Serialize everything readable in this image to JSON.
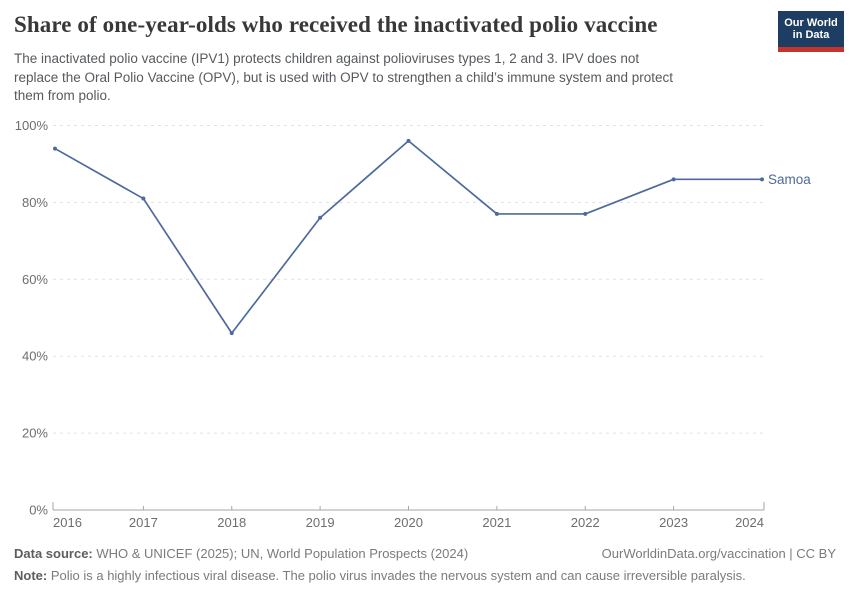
{
  "header": {
    "title": "Share of one-year-olds who received the inactivated polio vaccine",
    "subtitle_lines": [
      "The inactivated polio vaccine (IPV1) protects children against polioviruses types 1, 2 and 3. IPV does not",
      "replace the Oral Polio Vaccine (OPV), but is used with OPV to strengthen a child’s immune system and protect",
      "them from polio."
    ]
  },
  "logo": {
    "line1": "Our World",
    "line2": "in Data"
  },
  "chart_data": {
    "type": "line",
    "title": "Share of one-year-olds who received the inactivated polio vaccine",
    "x": [
      2016,
      2017,
      2018,
      2019,
      2020,
      2021,
      2022,
      2023,
      2024
    ],
    "series": [
      {
        "name": "Samoa",
        "values": [
          94,
          81,
          46,
          76,
          96,
          77,
          77,
          86,
          86
        ],
        "color": "#4c6a9c"
      }
    ],
    "unit": "%",
    "ylim": [
      0,
      100
    ],
    "yticks": [
      0,
      20,
      40,
      60,
      80,
      100
    ],
    "ytick_labels": [
      "0%",
      "20%",
      "40%",
      "60%",
      "80%",
      "100%"
    ],
    "xtick_labels": [
      "2016",
      "2017",
      "2018",
      "2019",
      "2020",
      "2021",
      "2022",
      "2023",
      "2024"
    ],
    "grid": "horizontal-dashed",
    "legend_position": "line-end-label"
  },
  "footer": {
    "data_source_label": "Data source:",
    "data_source_text": " WHO & UNICEF (2025); UN, World Population Prospects (2024)",
    "link_text": "OurWorldinData.org/vaccination | CC BY",
    "note_label": "Note:",
    "note_text": " Polio is a highly infectious viral disease. The polio virus invades the nervous system and can cause irreversible paralysis."
  },
  "colors": {
    "line": "#4c6a9c",
    "entity_label": "#4c6a9c",
    "grid": "#e1e1e1",
    "axis": "#a6a6a6",
    "tick_label": "#6e6e6e",
    "logo_bg": "#1d3d63",
    "logo_bar": "#c5332d"
  }
}
